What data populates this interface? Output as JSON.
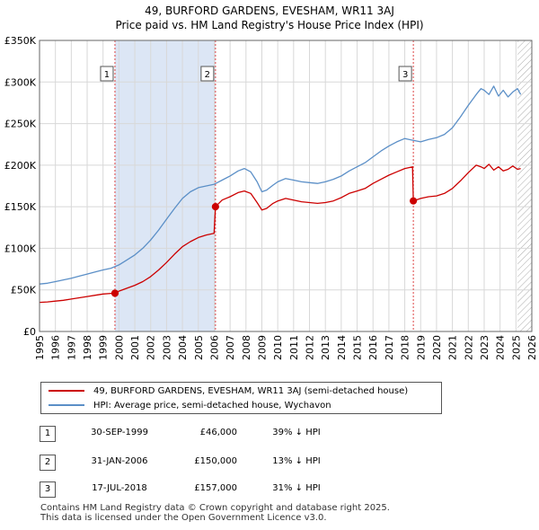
{
  "chart_data": {
    "type": "line",
    "title": "49, BURFORD GARDENS, EVESHAM, WR11 3AJ",
    "subtitle": "Price paid vs. HM Land Registry's House Price Index (HPI)",
    "xlim": [
      1995,
      2026
    ],
    "ylim": [
      0,
      350000
    ],
    "x_ticks": [
      1995,
      1996,
      1997,
      1998,
      1999,
      2000,
      2001,
      2002,
      2003,
      2004,
      2005,
      2006,
      2007,
      2008,
      2009,
      2010,
      2011,
      2012,
      2013,
      2014,
      2015,
      2016,
      2017,
      2018,
      2019,
      2020,
      2021,
      2022,
      2023,
      2024,
      2025,
      2026
    ],
    "y_ticks": [
      0,
      50000,
      100000,
      150000,
      200000,
      250000,
      300000,
      350000
    ],
    "y_tick_labels": [
      "£0",
      "£50K",
      "£100K",
      "£150K",
      "£200K",
      "£250K",
      "£300K",
      "£350K"
    ],
    "colors": {
      "price": "#cc0000",
      "hpi": "#5b8fc7",
      "shade": "#dce6f5",
      "hatch": "#999999"
    },
    "series": [
      {
        "name": "49, BURFORD GARDENS, EVESHAM, WR11 3AJ (semi-detached house)",
        "color": "#cc0000",
        "x": [
          1995.0,
          1995.5,
          1996.0,
          1996.5,
          1997.0,
          1997.5,
          1998.0,
          1998.5,
          1999.0,
          1999.5,
          1999.75,
          2000.0,
          2000.5,
          2001.0,
          2001.5,
          2002.0,
          2002.5,
          2003.0,
          2003.5,
          2004.0,
          2004.5,
          2005.0,
          2005.5,
          2005.99,
          2006.08,
          2006.5,
          2007.0,
          2007.5,
          2007.9,
          2008.3,
          2008.7,
          2009.0,
          2009.3,
          2009.7,
          2010.0,
          2010.5,
          2011.0,
          2011.5,
          2012.0,
          2012.5,
          2013.0,
          2013.5,
          2014.0,
          2014.5,
          2015.0,
          2015.5,
          2016.0,
          2016.5,
          2017.0,
          2017.5,
          2018.0,
          2018.49,
          2018.54,
          2019.0,
          2019.5,
          2020.0,
          2020.5,
          2021.0,
          2021.5,
          2022.0,
          2022.5,
          2022.8,
          2023.0,
          2023.3,
          2023.6,
          2023.9,
          2024.2,
          2024.5,
          2024.8,
          2025.1,
          2025.3
        ],
        "values": [
          35000,
          35500,
          36500,
          37500,
          39000,
          40500,
          42000,
          43500,
          45000,
          45800,
          46000,
          48500,
          52000,
          55500,
          60000,
          66000,
          74000,
          83000,
          93000,
          102000,
          108000,
          113000,
          116000,
          118000,
          150000,
          158000,
          162000,
          167000,
          169000,
          166000,
          155000,
          146000,
          148000,
          154000,
          157000,
          160000,
          158000,
          156000,
          155000,
          154000,
          155000,
          157000,
          161000,
          166000,
          169000,
          172000,
          178000,
          183000,
          188000,
          192000,
          196000,
          198000,
          157000,
          160000,
          162000,
          163000,
          166000,
          172000,
          181000,
          191000,
          200000,
          198000,
          196000,
          201000,
          194000,
          198000,
          193000,
          195000,
          199000,
          195000,
          196000
        ]
      },
      {
        "name": "HPI: Average price, semi-detached house, Wychavon",
        "color": "#5b8fc7",
        "x": [
          1995.0,
          1995.5,
          1996.0,
          1996.5,
          1997.0,
          1997.5,
          1998.0,
          1998.5,
          1999.0,
          1999.5,
          2000.0,
          2000.5,
          2001.0,
          2001.5,
          2002.0,
          2002.5,
          2003.0,
          2003.5,
          2004.0,
          2004.5,
          2005.0,
          2005.5,
          2006.0,
          2006.5,
          2007.0,
          2007.5,
          2007.9,
          2008.3,
          2008.7,
          2009.0,
          2009.3,
          2009.7,
          2010.0,
          2010.5,
          2011.0,
          2011.5,
          2012.0,
          2012.5,
          2013.0,
          2013.5,
          2014.0,
          2014.5,
          2015.0,
          2015.5,
          2016.0,
          2016.5,
          2017.0,
          2017.5,
          2018.0,
          2018.5,
          2019.0,
          2019.5,
          2020.0,
          2020.5,
          2021.0,
          2021.5,
          2022.0,
          2022.5,
          2022.8,
          2023.0,
          2023.3,
          2023.6,
          2023.9,
          2024.2,
          2024.5,
          2024.8,
          2025.1,
          2025.3
        ],
        "values": [
          57000,
          58000,
          60000,
          62000,
          64000,
          66500,
          69000,
          71500,
          74000,
          76000,
          80000,
          86000,
          92000,
          100000,
          110000,
          122000,
          135000,
          148000,
          160000,
          168000,
          173000,
          175000,
          177000,
          182000,
          187000,
          193000,
          196000,
          192000,
          180000,
          168000,
          170000,
          176000,
          180000,
          184000,
          182000,
          180000,
          179000,
          178000,
          180000,
          183000,
          187000,
          193000,
          198000,
          203000,
          210000,
          217000,
          223000,
          228000,
          232000,
          230000,
          228000,
          231000,
          233000,
          237000,
          245000,
          258000,
          272000,
          285000,
          292000,
          290000,
          285000,
          295000,
          283000,
          290000,
          282000,
          288000,
          292000,
          285000
        ]
      }
    ],
    "markers": [
      {
        "label": "1",
        "x": 1999.75,
        "y": 46000
      },
      {
        "label": "2",
        "x": 2006.08,
        "y": 150000
      },
      {
        "label": "3",
        "x": 2018.54,
        "y": 157000
      }
    ],
    "shaded_ranges": [
      [
        1999.75,
        2006.08
      ]
    ],
    "hatched_from": 2025.1
  },
  "legend": {
    "price_label": "49, BURFORD GARDENS, EVESHAM, WR11 3AJ (semi-detached house)",
    "hpi_label": "HPI: Average price, semi-detached house, Wychavon"
  },
  "transactions": [
    {
      "num": "1",
      "date": "30-SEP-1999",
      "price": "£46,000",
      "hpi": "39% ↓ HPI"
    },
    {
      "num": "2",
      "date": "31-JAN-2006",
      "price": "£150,000",
      "hpi": "13% ↓ HPI"
    },
    {
      "num": "3",
      "date": "17-JUL-2018",
      "price": "£157,000",
      "hpi": "31% ↓ HPI"
    }
  ],
  "footer": {
    "line1": "Contains HM Land Registry data © Crown copyright and database right 2025.",
    "line2": "This data is licensed under the Open Government Licence v3.0."
  }
}
